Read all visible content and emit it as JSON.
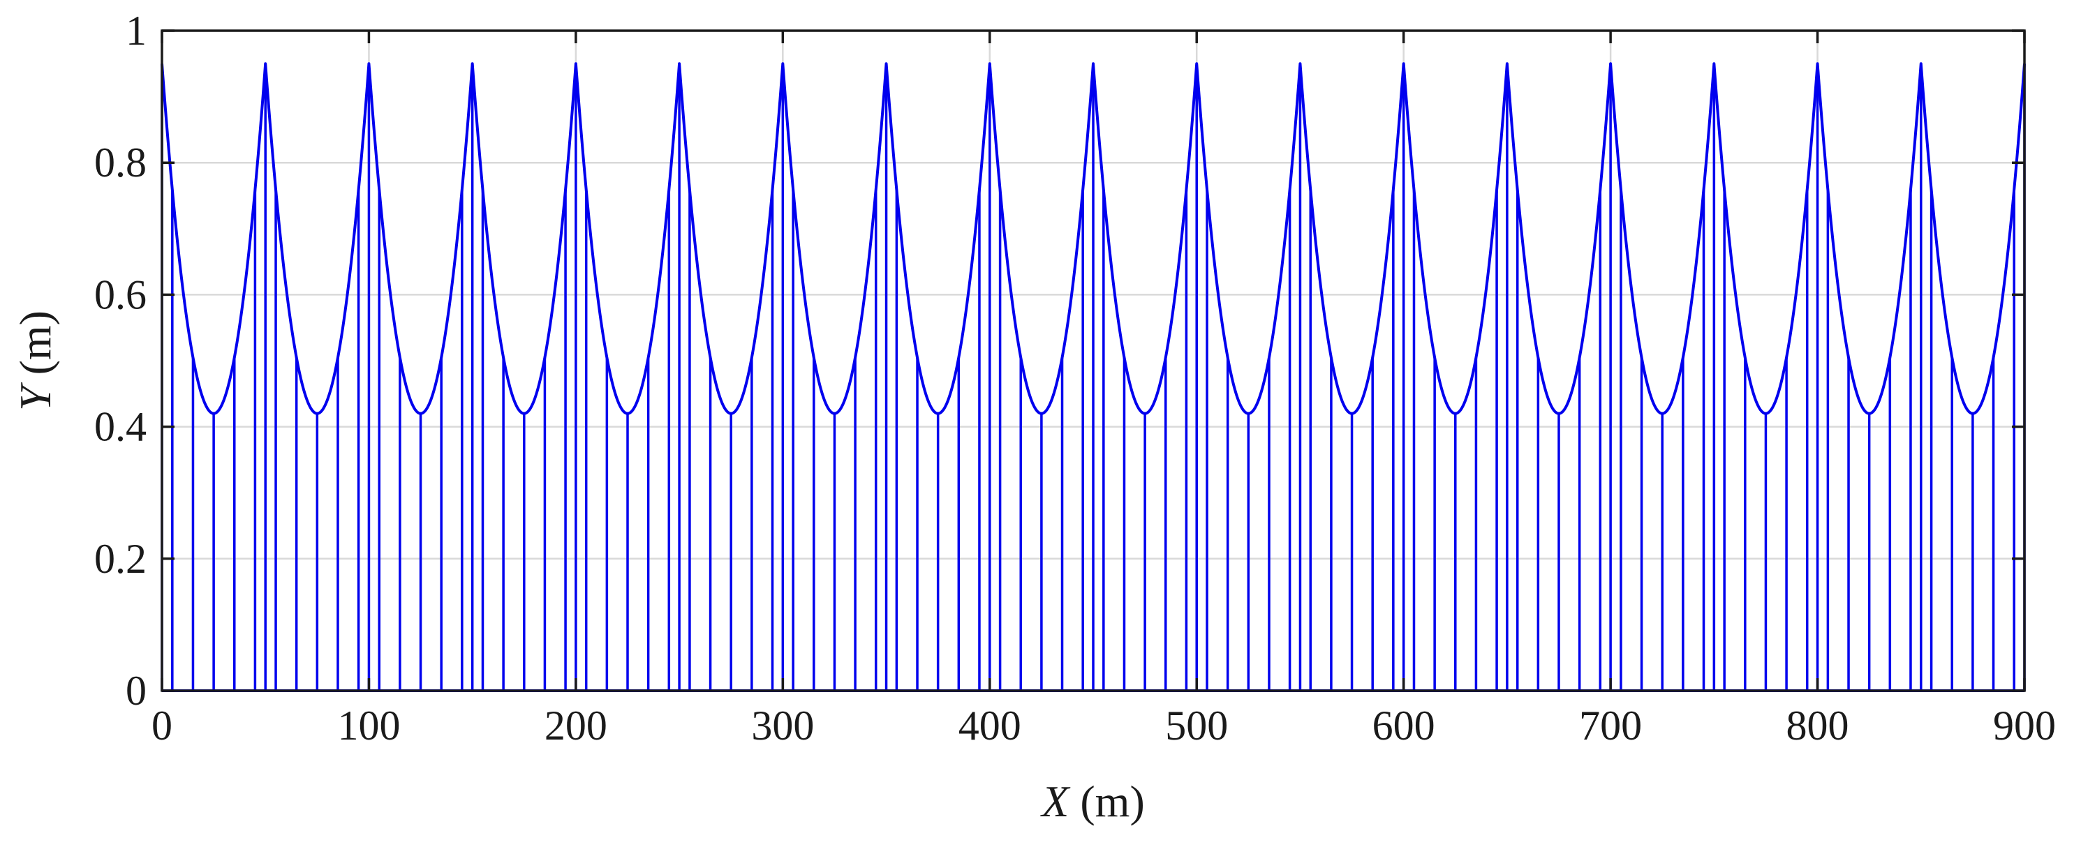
{
  "chart_data": {
    "type": "line",
    "title": "",
    "xlabel": {
      "var": "X",
      "unit": " (m)"
    },
    "ylabel": {
      "var": "Y",
      "unit": " (m)"
    },
    "xlim": [
      0,
      900
    ],
    "ylim": [
      0,
      1
    ],
    "x_ticks": [
      "0",
      "100",
      "200",
      "300",
      "400",
      "500",
      "600",
      "700",
      "800",
      "900"
    ],
    "y_ticks": [
      "0",
      "0.2",
      "0.4",
      "0.6",
      "0.8",
      "1"
    ],
    "grid": true,
    "line_color": "#0000ee",
    "profile": {
      "description_of_shape": "periodic cusp-shaped hanger envelope",
      "period": 50,
      "first_peak_x": 0,
      "peak_y": 0.95,
      "trough_y": 0.42
    },
    "stems_x": [
      0,
      5,
      15,
      25,
      35,
      45,
      50,
      55,
      65,
      75,
      85,
      95,
      100,
      105,
      115,
      125,
      135,
      145,
      150,
      155,
      165,
      175,
      185,
      195,
      200,
      205,
      215,
      225,
      235,
      245,
      250,
      255,
      265,
      275,
      285,
      295,
      300,
      305,
      315,
      325,
      335,
      345,
      350,
      355,
      365,
      375,
      385,
      395,
      400,
      405,
      415,
      425,
      435,
      445,
      450,
      455,
      465,
      475,
      485,
      495,
      500,
      505,
      515,
      525,
      535,
      545,
      550,
      555,
      565,
      575,
      585,
      595,
      600,
      605,
      615,
      625,
      635,
      645,
      650,
      655,
      665,
      675,
      685,
      695,
      700,
      705,
      715,
      725,
      735,
      745,
      750,
      755,
      765,
      775,
      785,
      795,
      800,
      805,
      815,
      825,
      835,
      845,
      850,
      855,
      865,
      875,
      885,
      895,
      900
    ]
  }
}
